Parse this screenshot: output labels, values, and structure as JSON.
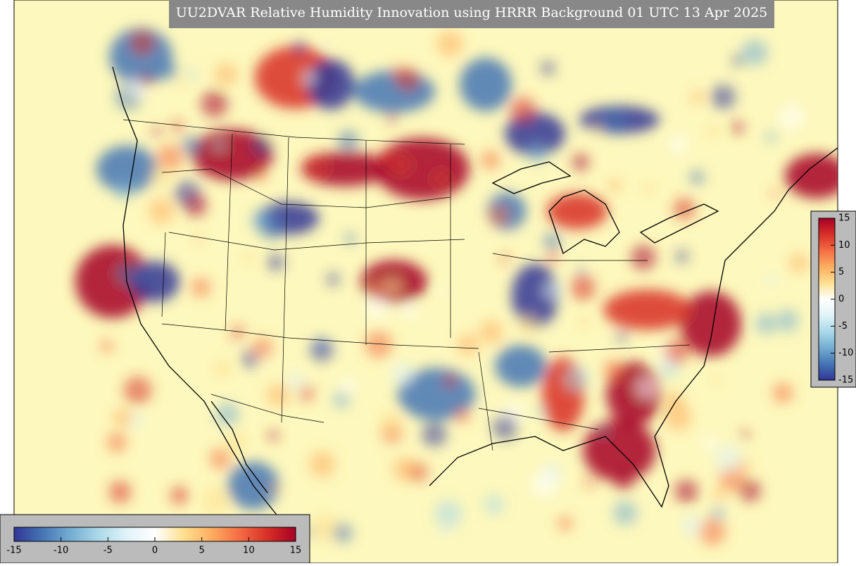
{
  "title": "UU2DVAR Relative Humidity Innovation using HRRR Background 01 UTC 13 Apr 2025",
  "colormap": [
    "#313695",
    "#4575b4",
    "#74add1",
    "#abd9e9",
    "#e0f3f8",
    "#ffffff",
    "#fee090",
    "#fdae61",
    "#f46d43",
    "#d73027",
    "#a50026"
  ],
  "colorbars": [
    {
      "orientation": "vertical",
      "range": [
        -15,
        15
      ],
      "ticks": [
        15,
        10,
        5,
        0,
        -5,
        -10,
        -15
      ]
    },
    {
      "orientation": "horizontal",
      "range": [
        -15,
        15
      ],
      "ticks": [
        -15,
        -10,
        -5,
        0,
        5,
        10,
        15
      ]
    }
  ]
}
